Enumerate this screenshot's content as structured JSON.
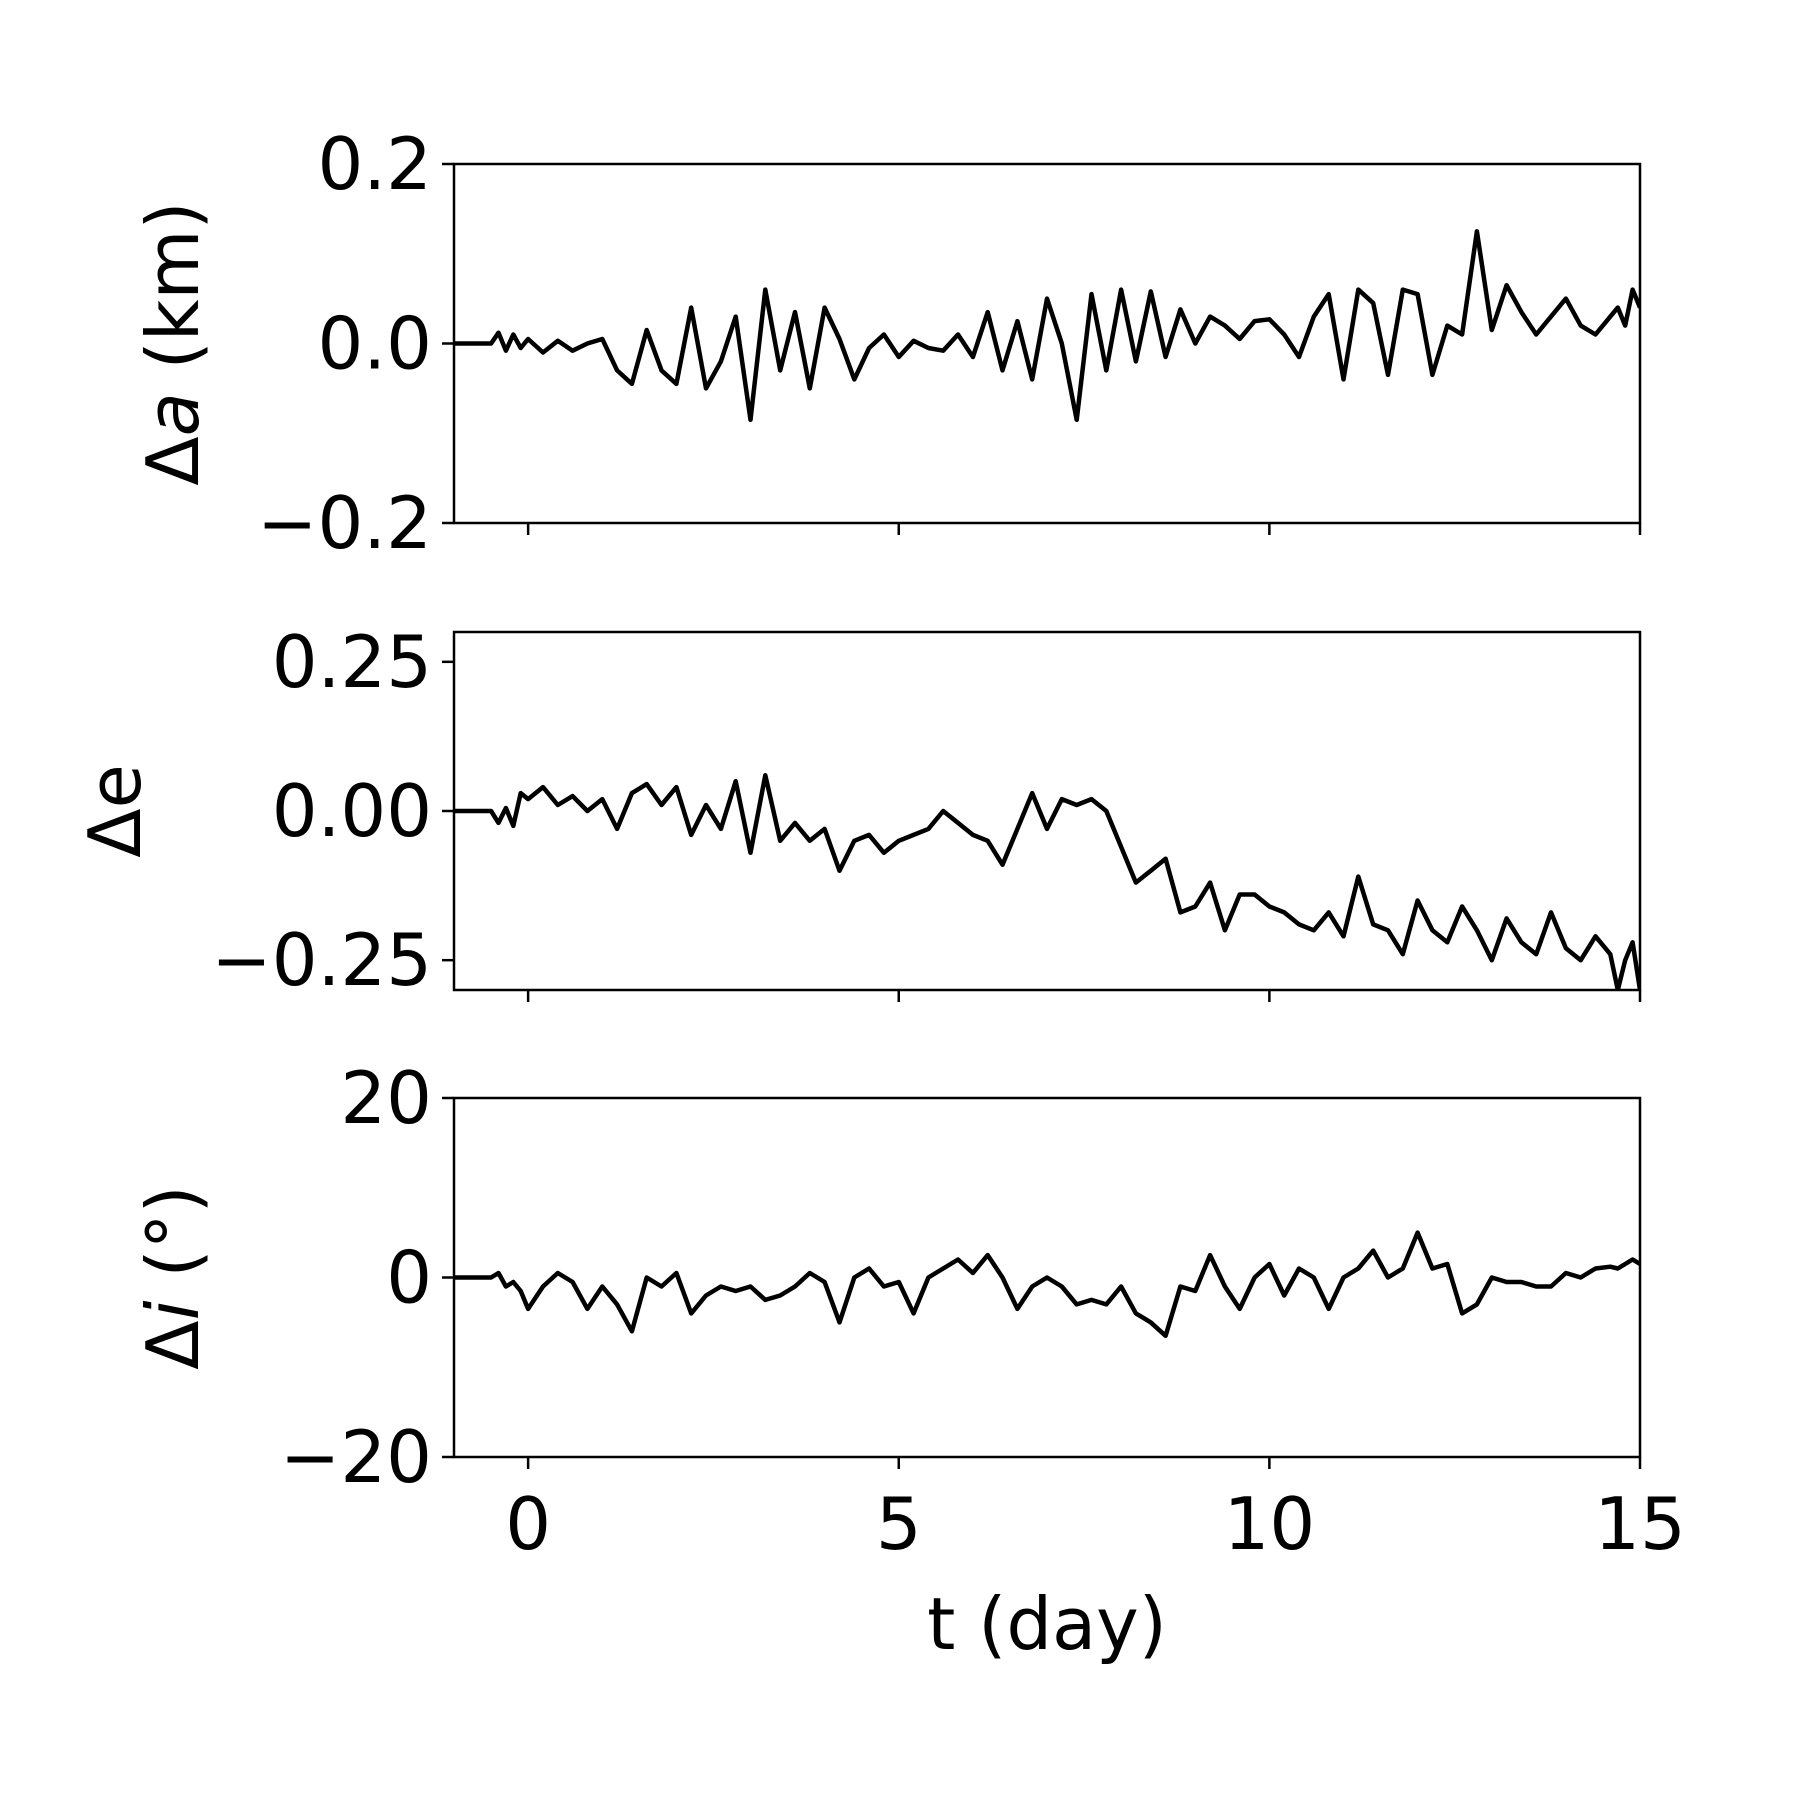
{
  "chart_data": [
    {
      "type": "line",
      "ylabel": "Δa (km)",
      "ylabel_italic": "a",
      "ylim": [
        -0.2,
        0.2
      ],
      "yticks": [
        0.2,
        0.0,
        -0.2
      ],
      "ytick_labels": [
        "0.2",
        "0.0",
        "−0.2"
      ],
      "xlim": [
        -1,
        15
      ],
      "series": [
        {
          "color": "#000000",
          "x": [
            -1,
            -0.5,
            -0.4,
            -0.3,
            -0.2,
            -0.1,
            0,
            0.2,
            0.4,
            0.6,
            0.8,
            1.0,
            1.2,
            1.4,
            1.6,
            1.8,
            2.0,
            2.2,
            2.4,
            2.6,
            2.8,
            3.0,
            3.2,
            3.4,
            3.6,
            3.8,
            4.0,
            4.2,
            4.4,
            4.6,
            4.8,
            5.0,
            5.2,
            5.4,
            5.6,
            5.8,
            6.0,
            6.2,
            6.4,
            6.6,
            6.8,
            7.0,
            7.2,
            7.4,
            7.6,
            7.8,
            8.0,
            8.2,
            8.4,
            8.6,
            8.8,
            9.0,
            9.2,
            9.4,
            9.6,
            9.8,
            10.0,
            10.2,
            10.4,
            10.6,
            10.8,
            11.0,
            11.2,
            11.4,
            11.6,
            11.8,
            12.0,
            12.2,
            12.4,
            12.6,
            12.8,
            13.0,
            13.2,
            13.4,
            13.6,
            13.8,
            14.0,
            14.2,
            14.4,
            14.6,
            14.7,
            14.8,
            14.9,
            15.0
          ],
          "y": [
            0.0,
            0.0,
            0.012,
            -0.008,
            0.01,
            -0.005,
            0.005,
            -0.01,
            0.003,
            -0.008,
            0.0,
            0.005,
            -0.03,
            -0.045,
            0.015,
            -0.03,
            -0.045,
            0.04,
            -0.05,
            -0.02,
            0.03,
            -0.085,
            0.06,
            -0.03,
            0.035,
            -0.05,
            0.04,
            0.005,
            -0.04,
            -0.005,
            0.01,
            -0.015,
            0.003,
            -0.005,
            -0.008,
            0.01,
            -0.015,
            0.035,
            -0.03,
            0.025,
            -0.04,
            0.05,
            0.0,
            -0.085,
            0.055,
            -0.03,
            0.06,
            -0.02,
            0.058,
            -0.015,
            0.038,
            0.0,
            0.03,
            0.02,
            0.005,
            0.025,
            0.027,
            0.01,
            -0.015,
            0.03,
            0.055,
            -0.04,
            0.06,
            0.045,
            -0.035,
            0.06,
            0.055,
            -0.035,
            0.02,
            0.01,
            0.125,
            0.015,
            0.065,
            0.035,
            0.01,
            0.03,
            0.05,
            0.02,
            0.01,
            0.03,
            0.04,
            0.02,
            0.06,
            0.04
          ]
        }
      ]
    },
    {
      "type": "line",
      "ylabel": "Δe",
      "ylim": [
        -0.3,
        0.3
      ],
      "yticks": [
        0.25,
        0.0,
        -0.25
      ],
      "ytick_labels": [
        "0.25",
        "0.00",
        "−0.25"
      ],
      "xlim": [
        -1,
        15
      ],
      "series": [
        {
          "color": "#000000",
          "x": [
            -1,
            -0.5,
            -0.4,
            -0.3,
            -0.2,
            -0.1,
            0,
            0.2,
            0.4,
            0.6,
            0.8,
            1.0,
            1.2,
            1.4,
            1.6,
            1.8,
            2.0,
            2.2,
            2.4,
            2.6,
            2.8,
            3.0,
            3.2,
            3.4,
            3.6,
            3.8,
            4.0,
            4.2,
            4.4,
            4.6,
            4.8,
            5.0,
            5.2,
            5.4,
            5.6,
            5.8,
            6.0,
            6.2,
            6.4,
            6.6,
            6.8,
            7.0,
            7.2,
            7.4,
            7.6,
            7.8,
            8.0,
            8.2,
            8.4,
            8.6,
            8.8,
            9.0,
            9.2,
            9.4,
            9.6,
            9.8,
            10.0,
            10.2,
            10.4,
            10.6,
            10.8,
            11.0,
            11.2,
            11.4,
            11.6,
            11.8,
            12.0,
            12.2,
            12.4,
            12.6,
            12.8,
            13.0,
            13.2,
            13.4,
            13.6,
            13.8,
            14.0,
            14.2,
            14.4,
            14.6,
            14.7,
            14.8,
            14.9,
            15.0
          ],
          "y": [
            0.0,
            0.0,
            -0.02,
            0.005,
            -0.025,
            0.03,
            0.02,
            0.04,
            0.01,
            0.025,
            0.0,
            0.02,
            -0.03,
            0.03,
            0.045,
            0.01,
            0.04,
            -0.04,
            0.01,
            -0.03,
            0.05,
            -0.07,
            0.06,
            -0.05,
            -0.02,
            -0.05,
            -0.03,
            -0.1,
            -0.05,
            -0.04,
            -0.07,
            -0.05,
            -0.04,
            -0.03,
            0.0,
            -0.02,
            -0.04,
            -0.05,
            -0.09,
            -0.03,
            0.03,
            -0.03,
            0.02,
            0.01,
            0.02,
            0.0,
            -0.06,
            -0.12,
            -0.1,
            -0.08,
            -0.17,
            -0.16,
            -0.12,
            -0.2,
            -0.14,
            -0.14,
            -0.16,
            -0.17,
            -0.19,
            -0.2,
            -0.17,
            -0.21,
            -0.11,
            -0.19,
            -0.2,
            -0.24,
            -0.15,
            -0.2,
            -0.22,
            -0.16,
            -0.2,
            -0.25,
            -0.18,
            -0.22,
            -0.24,
            -0.17,
            -0.23,
            -0.25,
            -0.21,
            -0.24,
            -0.3,
            -0.25,
            -0.22,
            -0.3
          ]
        }
      ]
    },
    {
      "type": "line",
      "ylabel": "Δi (°)",
      "ylabel_italic": "i",
      "ylim": [
        -20,
        20
      ],
      "yticks": [
        20,
        0,
        -20
      ],
      "ytick_labels": [
        "20",
        "0",
        "−20"
      ],
      "xlim": [
        -1,
        15
      ],
      "xticks": [
        0,
        5,
        10,
        15
      ],
      "xtick_labels": [
        "0",
        "5",
        "10",
        "15"
      ],
      "xlabel": "t (day)",
      "series": [
        {
          "color": "#000000",
          "x": [
            -1,
            -0.5,
            -0.4,
            -0.3,
            -0.2,
            -0.1,
            0,
            0.2,
            0.4,
            0.6,
            0.8,
            1.0,
            1.2,
            1.4,
            1.6,
            1.8,
            2.0,
            2.2,
            2.4,
            2.6,
            2.8,
            3.0,
            3.2,
            3.4,
            3.6,
            3.8,
            4.0,
            4.2,
            4.4,
            4.6,
            4.8,
            5.0,
            5.2,
            5.4,
            5.6,
            5.8,
            6.0,
            6.2,
            6.4,
            6.6,
            6.8,
            7.0,
            7.2,
            7.4,
            7.6,
            7.8,
            8.0,
            8.2,
            8.4,
            8.6,
            8.8,
            9.0,
            9.2,
            9.4,
            9.6,
            9.8,
            10.0,
            10.2,
            10.4,
            10.6,
            10.8,
            11.0,
            11.2,
            11.4,
            11.6,
            11.8,
            12.0,
            12.2,
            12.4,
            12.6,
            12.8,
            13.0,
            13.2,
            13.4,
            13.6,
            13.8,
            14.0,
            14.2,
            14.4,
            14.6,
            14.7,
            14.8,
            14.9,
            15.0
          ],
          "y": [
            0,
            0,
            0.5,
            -1.0,
            -0.5,
            -1.5,
            -3.5,
            -1.0,
            0.5,
            -0.5,
            -3.5,
            -1.0,
            -3.0,
            -6.0,
            0.0,
            -1.0,
            0.5,
            -4.0,
            -2.0,
            -1.0,
            -1.5,
            -1.0,
            -2.5,
            -2.0,
            -1.0,
            0.5,
            -0.5,
            -5.0,
            0.0,
            1.0,
            -1.0,
            -0.5,
            -4.0,
            0.0,
            1.0,
            2.0,
            0.5,
            2.5,
            0.0,
            -3.5,
            -1.0,
            0.0,
            -1.0,
            -3.0,
            -2.5,
            -3.0,
            -1.0,
            -4.0,
            -5.0,
            -6.5,
            -1.0,
            -1.5,
            2.5,
            -1.0,
            -3.5,
            0.0,
            1.5,
            -2.0,
            1.0,
            0.0,
            -3.5,
            0.0,
            1.0,
            3.0,
            0.0,
            1.0,
            5.0,
            1.0,
            1.5,
            -4.0,
            -3.0,
            0.0,
            -0.5,
            -0.5,
            -1.0,
            -1.0,
            0.5,
            0.0,
            1.0,
            1.2,
            1.0,
            1.5,
            2.0,
            1.5
          ]
        }
      ]
    }
  ]
}
